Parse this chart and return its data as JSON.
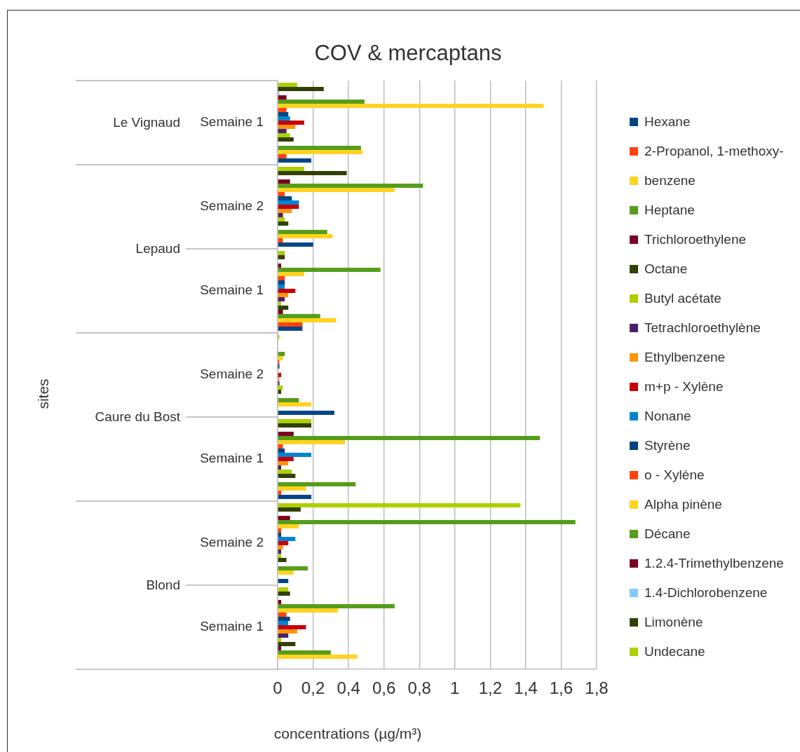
{
  "chart_data": {
    "type": "bar",
    "orientation": "horizontal",
    "title": "COV & mercaptans",
    "xlabel": "concentrations (µg/m³)",
    "categories": [
      "Semaine 1",
      "Semaine 2",
      "Semaine 1",
      "Semaine 2",
      "Semaine 1",
      "Semaine 2",
      "Semaine 1"
    ],
    "annotations": [
      "sites",
      "Le Vignaud",
      "Lepaud",
      "Caure du Bost",
      "Blond"
    ],
    "xlim": [
      0,
      1.8
    ],
    "xticks": [
      0,
      {
        "value": 0.2,
        "label": "0,2"
      },
      {
        "value": 0.4,
        "label": "0,4"
      },
      {
        "value": 0.6,
        "label": "0,6"
      },
      {
        "value": 0.8,
        "label": "0,8"
      },
      1,
      {
        "value": 1.2,
        "label": "1,2"
      },
      {
        "value": 1.4,
        "label": "1,4"
      },
      {
        "value": 1.6,
        "label": "1,6"
      },
      {
        "value": 1.8,
        "label": "1,8"
      }
    ],
    "grid": "x",
    "legend": "right",
    "series": [
      {
        "name": "Undecane",
        "color": "#aecf00",
        "values": [
          0.11,
          0.15,
          0.04,
          0.01,
          0.19,
          1.37,
          0.06
        ]
      },
      {
        "name": "Limonène",
        "color": "#314004",
        "values": [
          0.26,
          0.39,
          0.04,
          0,
          0.19,
          0.13,
          0.07
        ]
      },
      {
        "name": "1.4-Dichlorobenzene",
        "color": "#83caff",
        "values": [
          0.01,
          0,
          0,
          0,
          0,
          0,
          0
        ]
      },
      {
        "name": "1.2.4-Trimethylbenzene",
        "color": "#7e0021",
        "values": [
          0.05,
          0.07,
          0.02,
          0,
          0.09,
          0.07,
          0.02
        ]
      },
      {
        "name": "Décane",
        "color": "#579d1c",
        "values": [
          0.49,
          0.82,
          0.58,
          0.04,
          1.48,
          1.68,
          0.66
        ]
      },
      {
        "name": "Alpha pinène",
        "color": "#ffd320",
        "values": [
          1.5,
          0.66,
          0.15,
          0.03,
          0.38,
          0.12,
          0.34
        ]
      },
      {
        "name": "o - Xylène",
        "color": "#ff420e",
        "values": [
          0.05,
          0.04,
          0.04,
          0.01,
          0.03,
          0.02,
          0.05
        ]
      },
      {
        "name": "Styrène",
        "color": "#004586",
        "values": [
          0.06,
          0.08,
          0.04,
          0.01,
          0.04,
          0.02,
          0.07
        ]
      },
      {
        "name": "Nonane",
        "color": "#0084d1",
        "values": [
          0.07,
          0.12,
          0.04,
          0,
          0.19,
          0.1,
          0.06
        ]
      },
      {
        "name": "m+p - Xylène",
        "color": "#c5000b",
        "values": [
          0.15,
          0.12,
          0.1,
          0.02,
          0.09,
          0.06,
          0.16
        ]
      },
      {
        "name": "Ethylbenzene",
        "color": "#ff950e",
        "values": [
          0.1,
          0.08,
          0.06,
          0.01,
          0.06,
          0.03,
          0.11
        ]
      },
      {
        "name": "Tetrachloroethylène",
        "color": "#4b1f6f",
        "values": [
          0.05,
          0.03,
          0.04,
          0.01,
          0.02,
          0.02,
          0.06
        ]
      },
      {
        "name": "Butyl acétate",
        "color": "#aecf00",
        "values": [
          0.07,
          0.04,
          0.02,
          0.03,
          0.08,
          0.02,
          0.02
        ]
      },
      {
        "name": "Octane",
        "color": "#314004",
        "values": [
          0.09,
          0.06,
          0.06,
          0.02,
          0.1,
          0.05,
          0.1
        ]
      },
      {
        "name": "Trichloroethylene",
        "color": "#7e0021",
        "values": [
          0,
          0,
          0.03,
          0,
          0,
          0,
          0.02
        ]
      },
      {
        "name": "Heptane",
        "color": "#579d1c",
        "values": [
          0.47,
          0.28,
          0.24,
          0.12,
          0.44,
          0.17,
          0.3
        ]
      },
      {
        "name": "benzene",
        "color": "#ffd320",
        "values": [
          0.48,
          0.31,
          0.33,
          0.19,
          0.16,
          0.09,
          0.45
        ]
      },
      {
        "name": "2-Propanol, 1-methoxy-",
        "color": "#ff420e",
        "values": [
          0.05,
          0.03,
          0.14,
          0,
          0.02,
          0,
          0
        ]
      },
      {
        "name": "Hexane",
        "color": "#004586",
        "values": [
          0.19,
          0.2,
          0.14,
          0.32,
          0.19,
          0.06,
          0
        ]
      }
    ]
  }
}
